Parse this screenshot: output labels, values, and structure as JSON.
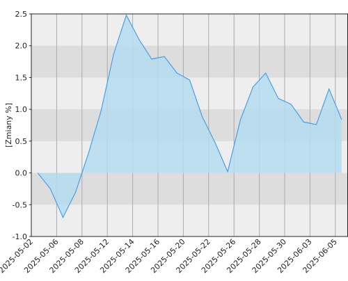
{
  "chart_data": {
    "type": "area",
    "y_label": "[Zmiany %]",
    "categories": [
      "2025-05-02",
      null,
      "2025-05-06",
      null,
      "2025-05-08",
      null,
      "2025-05-12",
      null,
      "2025-05-14",
      null,
      "2025-05-16",
      null,
      "2025-05-20",
      null,
      "2025-05-22",
      null,
      "2025-05-26",
      null,
      "2025-05-28",
      null,
      "2025-05-30",
      null,
      "2025-06-03",
      null,
      "2025-06-05"
    ],
    "values": [
      0.0,
      -0.25,
      -0.7,
      -0.3,
      0.3,
      0.97,
      1.87,
      2.48,
      2.1,
      1.79,
      1.83,
      1.57,
      1.46,
      0.88,
      0.48,
      0.02,
      0.83,
      1.35,
      1.57,
      1.17,
      1.08,
      0.8,
      0.76,
      1.32,
      0.84
    ],
    "color": "#4a9fe8",
    "fill_color": "#b4dcee",
    "ylim": [
      -1.0,
      2.5
    ],
    "yticks": [
      {
        "value": -1,
        "label": "-1.0"
      },
      -0.5,
      {
        "value": 0,
        "label": "0.0"
      },
      0.5,
      {
        "value": 1,
        "label": "1.0"
      },
      1.5,
      {
        "value": 2,
        "label": "2.0"
      },
      2.5
    ],
    "grid": true
  }
}
